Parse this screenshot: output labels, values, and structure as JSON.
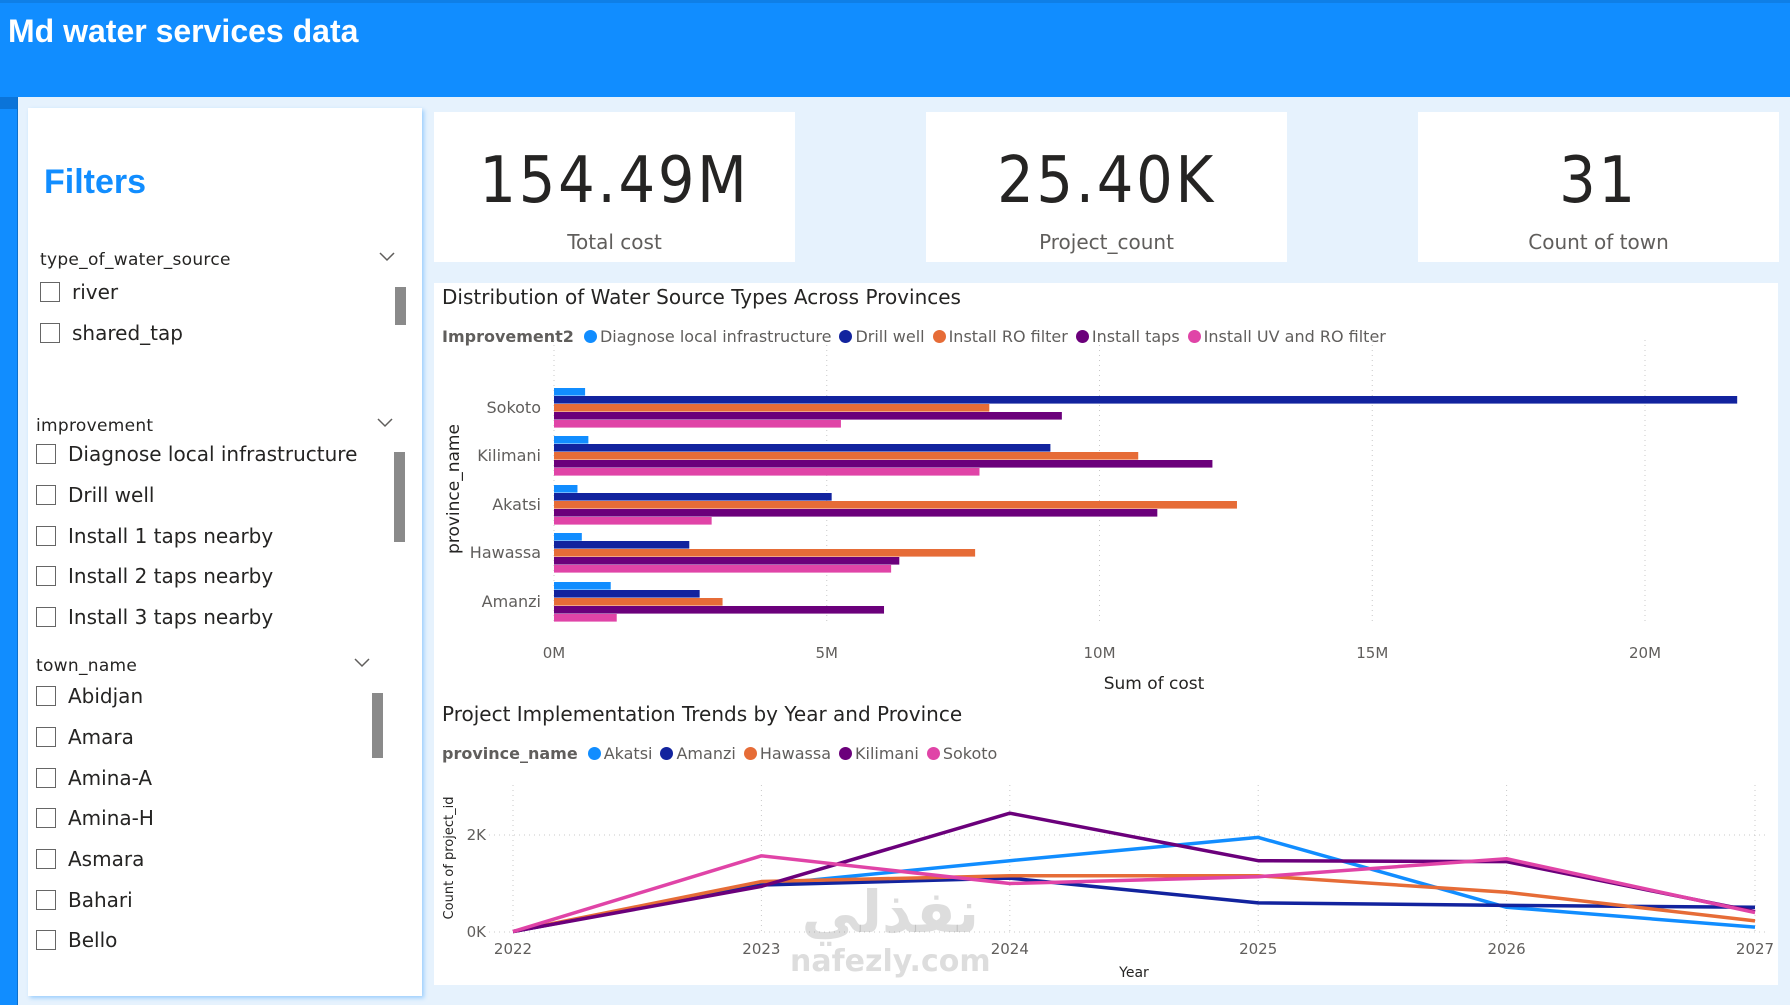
{
  "header": {
    "title": "Md water services data"
  },
  "colors": {
    "brand": "#118DFF",
    "background": "#E6F2FD",
    "diagnose": "#118DFF",
    "drill_well": "#12239E",
    "install_ro": "#E66C37",
    "install_taps": "#6B007B",
    "install_uv_ro": "#E044A7"
  },
  "filters": {
    "title": "Filters",
    "slicers": [
      {
        "header": "type_of_water_source",
        "items": [
          "river",
          "shared_tap"
        ]
      },
      {
        "header": "improvement",
        "items": [
          "Diagnose local infrastructure",
          "Drill well",
          "Install 1 taps nearby",
          "Install 2 taps nearby",
          "Install 3 taps nearby"
        ]
      },
      {
        "header": "town_name",
        "items": [
          "Abidjan",
          "Amara",
          "Amina-A",
          "Amina-H",
          "Asmara",
          "Bahari",
          "Bello"
        ]
      }
    ]
  },
  "kpis": [
    {
      "value": "154.49M",
      "label": "Total cost"
    },
    {
      "value": "25.40K",
      "label": "Project_count"
    },
    {
      "value": "31",
      "label": "Count of town"
    }
  ],
  "bar_chart": {
    "title": "Distribution of Water Source Types Across Provinces",
    "legend_title": "Improvement2"
  },
  "line_chart": {
    "title": "Project Implementation Trends by Year and Province",
    "legend_title": "province_name"
  },
  "watermark": {
    "arabic": "نفذلي",
    "latin": "nafezly.com"
  },
  "chart_data": [
    {
      "type": "bar",
      "orientation": "horizontal",
      "title": "Distribution of Water Source Types Across Provinces",
      "xlabel": "Sum of cost",
      "ylabel": "province_name",
      "legend_title": "Improvement2",
      "legend_position": "top-left",
      "grid": true,
      "xlim": [
        0,
        22000000
      ],
      "xticks": [
        0,
        5000000,
        10000000,
        15000000,
        20000000
      ],
      "xtick_labels": [
        "0M",
        "5M",
        "10M",
        "15M",
        "20M"
      ],
      "categories": [
        "Sokoto",
        "Kilimani",
        "Akatsi",
        "Hawassa",
        "Amanzi"
      ],
      "series": [
        {
          "name": "Diagnose local infrastructure",
          "color": "#118DFF",
          "values": [
            570000,
            630000,
            430000,
            510000,
            1040000
          ]
        },
        {
          "name": "Drill well",
          "color": "#12239E",
          "values": [
            21690000,
            9100000,
            5090000,
            2480000,
            2670000
          ]
        },
        {
          "name": "Install RO filter",
          "color": "#E66C37",
          "values": [
            7980000,
            10710000,
            12520000,
            7720000,
            3090000
          ]
        },
        {
          "name": "Install taps",
          "color": "#6B007B",
          "values": [
            9310000,
            12070000,
            11060000,
            6330000,
            6050000
          ]
        },
        {
          "name": "Install UV and RO filter",
          "color": "#E044A7",
          "values": [
            5260000,
            7800000,
            2890000,
            6180000,
            1150000
          ]
        }
      ]
    },
    {
      "type": "line",
      "title": "Project Implementation Trends by Year and Province",
      "xlabel": "Year",
      "ylabel": "Count of project_id",
      "legend_title": "province_name",
      "legend_position": "top-left",
      "grid": true,
      "x": [
        2022,
        2023,
        2024,
        2025,
        2026,
        2027
      ],
      "xtick_labels": [
        "2022",
        "2023",
        "2024",
        "2025",
        "2026",
        "2027"
      ],
      "ylim": [
        0,
        2500
      ],
      "yticks": [
        0,
        2000
      ],
      "ytick_labels": [
        "0K",
        "2K"
      ],
      "series": [
        {
          "name": "Akatsi",
          "color": "#118DFF",
          "values": [
            10,
            970,
            1470,
            1950,
            510,
            100
          ]
        },
        {
          "name": "Amanzi",
          "color": "#12239E",
          "values": [
            10,
            970,
            1110,
            600,
            550,
            510
          ]
        },
        {
          "name": "Hawassa",
          "color": "#E66C37",
          "values": [
            10,
            1040,
            1160,
            1160,
            820,
            230
          ]
        },
        {
          "name": "Kilimani",
          "color": "#6B007B",
          "values": [
            10,
            940,
            2450,
            1470,
            1450,
            420
          ]
        },
        {
          "name": "Sokoto",
          "color": "#E044A7",
          "values": [
            10,
            1570,
            1000,
            1140,
            1510,
            400
          ]
        }
      ]
    }
  ]
}
